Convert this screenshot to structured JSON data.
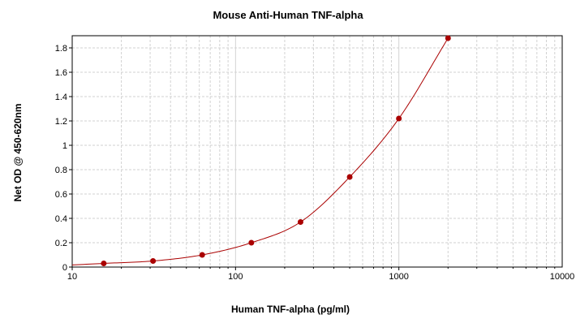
{
  "chart_data": {
    "type": "scatter",
    "title": "Mouse Anti-Human TNF-alpha",
    "xlabel": "Human TNF-alpha (pg/ml)",
    "ylabel": "Net OD @ 450-620nm",
    "xscale": "log",
    "xlim": [
      10,
      10000
    ],
    "ylim": [
      0,
      1.9
    ],
    "xticks": [
      "10",
      "100",
      "1000",
      "10000"
    ],
    "yticks": [
      "0",
      "0.2",
      "0.4",
      "0.6",
      "0.8",
      "1",
      "1.2",
      "1.4",
      "1.6",
      "1.8"
    ],
    "grid": true,
    "legend": "none",
    "series": [
      {
        "x": [
          15.6,
          31.25,
          62.5,
          125,
          250,
          500,
          1000,
          2000
        ],
        "y": [
          0.03,
          0.05,
          0.1,
          0.2,
          0.37,
          0.74,
          1.22,
          1.88
        ],
        "color": "#aa0000",
        "fit_line": true
      }
    ]
  }
}
